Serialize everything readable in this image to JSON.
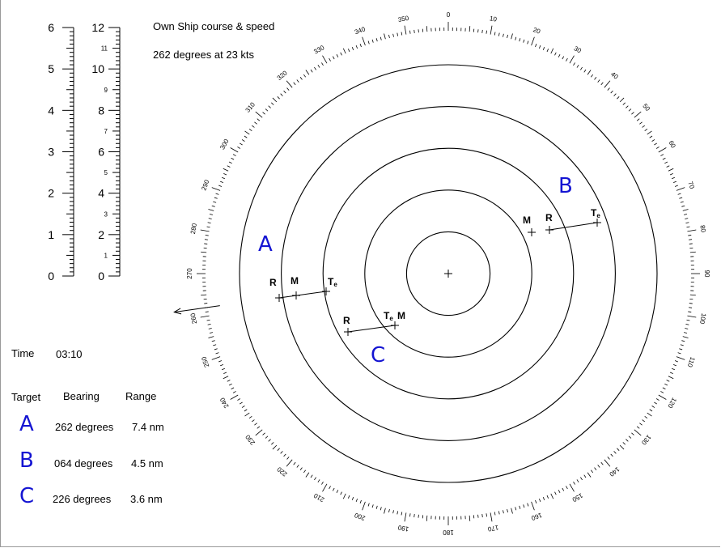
{
  "own_ship": {
    "heading_label": "Own Ship course & speed",
    "value": "262 degrees at 23 kts"
  },
  "time": {
    "label": "Time",
    "value": "03:10"
  },
  "table": {
    "headers": {
      "target": "Target",
      "bearing": "Bearing",
      "range": "Range"
    },
    "rows": [
      {
        "target": "A",
        "bearing": "262 degrees",
        "range": "7.4 nm"
      },
      {
        "target": "B",
        "bearing": "064 degrees",
        "range": "4.5 nm"
      },
      {
        "target": "C",
        "bearing": "226 degrees",
        "range": "3.6 nm"
      }
    ]
  },
  "scales": {
    "left": {
      "max": 6,
      "labels": [
        "6",
        "5",
        "4",
        "3",
        "2",
        "1",
        "0"
      ]
    },
    "right": {
      "max": 12,
      "major_labels": [
        "12",
        "10",
        "8",
        "6",
        "4",
        "2",
        "0"
      ],
      "minor_labels": [
        "11",
        "9",
        "7",
        "5",
        "3",
        "1"
      ]
    }
  },
  "plot": {
    "rings": 5,
    "bearing_labels": [
      "0",
      "10",
      "20",
      "30",
      "40",
      "50",
      "60",
      "70",
      "80",
      "90",
      "100",
      "110",
      "120",
      "130",
      "140",
      "150",
      "160",
      "170",
      "180",
      "190",
      "200",
      "210",
      "220",
      "230",
      "240",
      "250",
      "260",
      "270",
      "280",
      "290",
      "300",
      "310",
      "320",
      "330",
      "340",
      "350"
    ],
    "own_course_deg": 262,
    "target_labels": [
      "A",
      "B",
      "C"
    ],
    "point_labels": {
      "R": "R",
      "M": "M",
      "Te": "T",
      "Te_sub": "e"
    }
  },
  "colors": {
    "accent": "#1414d2",
    "ink": "#000000",
    "frame": "#999999"
  }
}
